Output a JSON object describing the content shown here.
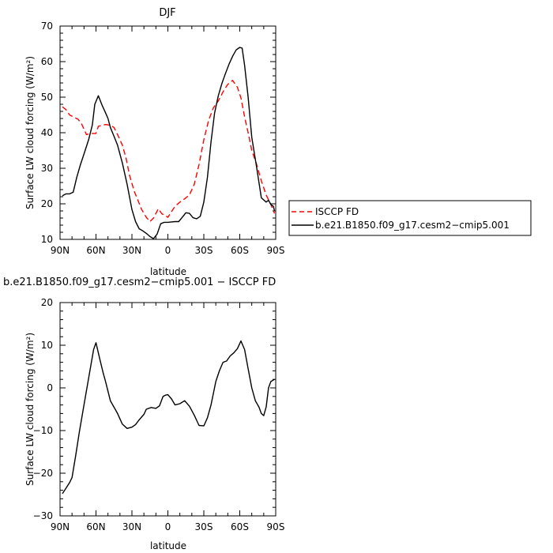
{
  "chart_data": [
    {
      "type": "line",
      "title": "DJF",
      "xlabel": "latitude",
      "ylabel": "Surface LW cloud forcing (W/m²)",
      "ylim": [
        10,
        70
      ],
      "xlim": [
        90,
        -90
      ],
      "x_ticks": [
        90,
        60,
        30,
        0,
        -30,
        -60,
        -90
      ],
      "x_tick_labels": [
        "90N",
        "60N",
        "30N",
        "0",
        "30S",
        "60S",
        "90S"
      ],
      "y_ticks": [
        10,
        20,
        30,
        40,
        50,
        60,
        70
      ],
      "y_tick_labels": [
        "10",
        "20",
        "30",
        "40",
        "50",
        "60",
        "70"
      ],
      "grid": false,
      "legend_position": "right",
      "series": [
        {
          "name": "ISCCP FD",
          "color": "#ff0000",
          "dash": "dashed",
          "x": [
            88,
            85,
            82,
            78,
            75,
            72,
            68,
            64,
            60,
            58,
            55,
            52,
            48,
            45,
            42,
            38,
            35,
            32,
            28,
            25,
            22,
            18,
            15,
            12,
            8,
            5,
            2,
            0,
            -3,
            -6,
            -10,
            -14,
            -18,
            -22,
            -26,
            -30,
            -34,
            -38,
            -42,
            -46,
            -50,
            -54,
            -58,
            -61,
            -64,
            -67,
            -70,
            -74,
            -78,
            -82,
            -86,
            -89
          ],
          "y": [
            47.3,
            46.5,
            45,
            44.3,
            43.8,
            42.5,
            39.5,
            39.8,
            39.8,
            41.8,
            42.1,
            42.3,
            42.1,
            41.5,
            39.5,
            36.5,
            33,
            28,
            23.5,
            21,
            18.5,
            16.2,
            15,
            16,
            18.6,
            17.2,
            16.7,
            16.2,
            17.8,
            19.3,
            20.5,
            21.4,
            22.5,
            25.5,
            31,
            38,
            43.5,
            47,
            48.9,
            51.5,
            53.6,
            54.7,
            52.8,
            49.8,
            44.5,
            40,
            35,
            31.2,
            26.5,
            22.5,
            19.8,
            17.3
          ]
        },
        {
          "name": "b.e21.B1850.f09_g17.cesm2−cmip5.001",
          "color": "#000000",
          "dash": "solid",
          "x": [
            88,
            85,
            82,
            79,
            76,
            73,
            70,
            66,
            63,
            61,
            58,
            55,
            52,
            50,
            48,
            45,
            42,
            38,
            34,
            30,
            27,
            24,
            21,
            18,
            15,
            12,
            9,
            6,
            3,
            0,
            -3,
            -6,
            -9,
            -12,
            -15,
            -18,
            -21,
            -24,
            -27,
            -30,
            -33,
            -36,
            -39,
            -42,
            -45,
            -48,
            -51,
            -54,
            -57,
            -60,
            -62,
            -64,
            -67,
            -70,
            -74,
            -78,
            -82,
            -84,
            -86,
            -88,
            -89
          ],
          "y": [
            22.3,
            22.8,
            22.8,
            23.3,
            27.5,
            31,
            34,
            38.2,
            42.2,
            48,
            50.4,
            47.8,
            45.6,
            44,
            41.5,
            39,
            36.5,
            31.5,
            25.5,
            18.4,
            15,
            13,
            12.4,
            11.7,
            10.8,
            10.2,
            11.5,
            14.4,
            14.8,
            14.8,
            14.9,
            15,
            15,
            16.2,
            17.5,
            17.3,
            16.1,
            15.8,
            16.5,
            20.5,
            27.5,
            37.4,
            45.5,
            50.3,
            53.8,
            56.6,
            59.3,
            61.5,
            63.3,
            64,
            63.8,
            59,
            50,
            38.7,
            30.5,
            21.7,
            20.5,
            21,
            19.8,
            19.3,
            18
          ]
        }
      ]
    },
    {
      "type": "line",
      "title": "b.e21.B1850.f09_g17.cesm2−cmip5.001 − ISCCP FD",
      "xlabel": "latitude",
      "ylabel": "Surface LW cloud forcing (W/m²)",
      "ylim": [
        -30,
        20
      ],
      "xlim": [
        90,
        -90
      ],
      "x_ticks": [
        90,
        60,
        30,
        0,
        -30,
        -60,
        -90
      ],
      "x_tick_labels": [
        "90N",
        "60N",
        "30N",
        "0",
        "30S",
        "60S",
        "90S"
      ],
      "y_ticks": [
        -30,
        -20,
        -10,
        0,
        10,
        20
      ],
      "y_tick_labels": [
        "−30",
        "−20",
        "−10",
        "0",
        "10",
        "20"
      ],
      "grid": false,
      "series": [
        {
          "color": "#000000",
          "dash": "solid",
          "x": [
            88,
            85,
            82,
            80,
            77,
            74,
            70,
            66,
            62,
            60,
            57,
            54,
            52,
            48,
            46,
            44,
            42,
            38,
            34,
            30,
            27,
            24,
            20,
            18,
            14,
            10,
            7,
            4,
            2,
            0,
            -3,
            -6,
            -10,
            -14,
            -18,
            -22,
            -26,
            -30,
            -33,
            -36,
            -40,
            -43,
            -46,
            -49,
            -52,
            -55,
            -58,
            -61,
            -64,
            -67,
            -70,
            -73,
            -76,
            -78,
            -80,
            -82,
            -84,
            -86,
            -89
          ],
          "y": [
            -24.8,
            -23.5,
            -22.2,
            -21,
            -16,
            -10.5,
            -4,
            2.5,
            9,
            10.6,
            7,
            3.5,
            1.5,
            -3,
            -4,
            -5,
            -6,
            -8.5,
            -9.5,
            -9.2,
            -8.6,
            -7.5,
            -6.2,
            -5,
            -4.6,
            -4.8,
            -4.2,
            -2,
            -1.7,
            -1.6,
            -2.6,
            -4,
            -3.7,
            -3,
            -4.3,
            -6.4,
            -8.8,
            -8.9,
            -7,
            -4,
            1.5,
            4,
            6,
            6.3,
            7.5,
            8.2,
            9.2,
            11,
            9,
            4.5,
            0,
            -3,
            -4.5,
            -6,
            -6.5,
            -4.5,
            0,
            1.5,
            2
          ]
        }
      ]
    }
  ]
}
